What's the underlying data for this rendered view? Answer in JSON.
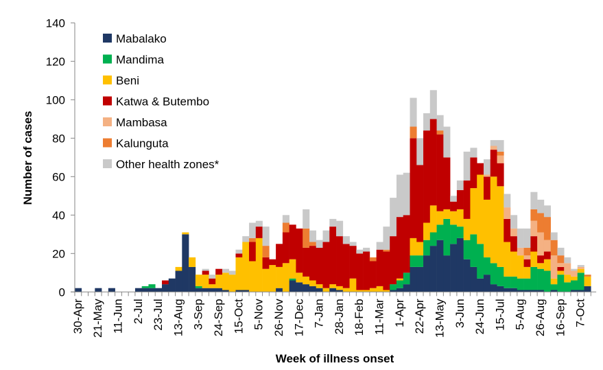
{
  "chart_data": {
    "type": "bar",
    "stacked": true,
    "title": "",
    "xlabel": "Week of illness onset",
    "ylabel": "Number of cases",
    "ylim": [
      0,
      140
    ],
    "yticks": [
      0,
      20,
      40,
      60,
      80,
      100,
      120,
      140
    ],
    "grid": false,
    "legend_position": "top-left",
    "x_tick_labels": [
      "30-Apr",
      "21-May",
      "11-Jun",
      "2-Jul",
      "23-Jul",
      "13-Aug",
      "3-Sep",
      "24-Sep",
      "15-Oct",
      "5-Nov",
      "26-Nov",
      "17-Dec",
      "7-Jan",
      "28-Jan",
      "18-Feb",
      "11-Mar",
      "1-Apr",
      "22-Apr",
      "13-May",
      "3-Jun",
      "24-Jun",
      "15-Jul",
      "5-Aug",
      "26-Aug",
      "16-Sep",
      "7-Oct"
    ],
    "x_label_every_n_weeks": 3,
    "num_weeks": 77,
    "series": [
      {
        "name": "Mabalako",
        "color": "#1F3864",
        "values": [
          2,
          0,
          0,
          2,
          0,
          2,
          0,
          0,
          0,
          2,
          2,
          2,
          2,
          4,
          7,
          11,
          30,
          13,
          2,
          2,
          2,
          2,
          1,
          0,
          1,
          1,
          0,
          0,
          0,
          0,
          2,
          0,
          6,
          5,
          4,
          3,
          2,
          0,
          2,
          1,
          0,
          0,
          0,
          0,
          0,
          0,
          0,
          1,
          2,
          4,
          13,
          13,
          19,
          24,
          27,
          19,
          25,
          28,
          17,
          13,
          7,
          9,
          4,
          3,
          2,
          2,
          1,
          1,
          1,
          1,
          0,
          1,
          0,
          0,
          1,
          1,
          3
        ]
      },
      {
        "name": "Mandima",
        "color": "#00B050",
        "values": [
          0,
          0,
          0,
          0,
          0,
          0,
          0,
          0,
          0,
          0,
          1,
          2,
          0,
          0,
          0,
          0,
          0,
          0,
          1,
          0,
          0,
          0,
          0,
          0,
          0,
          0,
          0,
          0,
          0,
          0,
          0,
          0,
          1,
          0,
          0,
          0,
          0,
          0,
          0,
          0,
          0,
          0,
          0,
          0,
          0,
          0,
          0,
          3,
          4,
          6,
          6,
          6,
          8,
          7,
          8,
          19,
          10,
          6,
          10,
          17,
          18,
          9,
          11,
          10,
          6,
          6,
          6,
          6,
          12,
          11,
          11,
          3,
          9,
          5,
          5,
          9,
          0
        ]
      },
      {
        "name": "Beni",
        "color": "#FFC000",
        "values": [
          0,
          0,
          0,
          0,
          0,
          0,
          0,
          0,
          0,
          0,
          0,
          0,
          0,
          0,
          0,
          2,
          1,
          5,
          6,
          7,
          2,
          7,
          9,
          9,
          17,
          25,
          16,
          28,
          12,
          14,
          11,
          15,
          10,
          5,
          4,
          3,
          2,
          2,
          2,
          2,
          2,
          7,
          1,
          1,
          2,
          3,
          1,
          0,
          1,
          0,
          9,
          7,
          9,
          14,
          7,
          5,
          7,
          9,
          11,
          24,
          36,
          30,
          45,
          42,
          18,
          13,
          12,
          6,
          8,
          3,
          6,
          3,
          2,
          4,
          2,
          2,
          5
        ]
      },
      {
        "name": "Katwa & Butembo",
        "color": "#C00000",
        "values": [
          0,
          0,
          0,
          0,
          0,
          0,
          0,
          0,
          0,
          0,
          0,
          0,
          0,
          2,
          0,
          0,
          0,
          0,
          0,
          2,
          3,
          3,
          0,
          0,
          2,
          0,
          10,
          6,
          6,
          3,
          12,
          16,
          18,
          23,
          15,
          18,
          19,
          24,
          30,
          26,
          23,
          17,
          19,
          20,
          14,
          19,
          20,
          25,
          32,
          30,
          52,
          40,
          48,
          45,
          40,
          27,
          5,
          10,
          20,
          16,
          6,
          12,
          14,
          12,
          12,
          8,
          0,
          4,
          8,
          4,
          4,
          0,
          2,
          0,
          0,
          0,
          0
        ]
      },
      {
        "name": "Mambasa",
        "color": "#F4B183",
        "values": [
          0,
          0,
          0,
          0,
          0,
          0,
          0,
          0,
          0,
          0,
          0,
          0,
          0,
          0,
          0,
          0,
          0,
          0,
          0,
          0,
          0,
          0,
          0,
          0,
          0,
          0,
          0,
          0,
          0,
          0,
          0,
          0,
          0,
          0,
          0,
          0,
          0,
          0,
          0,
          0,
          0,
          0,
          0,
          0,
          0,
          0,
          0,
          0,
          0,
          0,
          0,
          0,
          0,
          0,
          0,
          0,
          0,
          0,
          0,
          0,
          0,
          1,
          2,
          4,
          6,
          4,
          4,
          2,
          8,
          12,
          6,
          12,
          2,
          6,
          3,
          1,
          0
        ]
      },
      {
        "name": "Kalunguta",
        "color": "#ED7D31",
        "values": [
          0,
          0,
          0,
          0,
          0,
          0,
          0,
          0,
          0,
          0,
          0,
          0,
          0,
          0,
          0,
          0,
          0,
          0,
          0,
          0,
          0,
          0,
          0,
          0,
          0,
          0,
          2,
          0,
          6,
          0,
          0,
          5,
          0,
          0,
          10,
          2,
          0,
          0,
          0,
          0,
          0,
          0,
          0,
          0,
          2,
          0,
          1,
          0,
          0,
          0,
          6,
          0,
          0,
          0,
          2,
          0,
          0,
          0,
          0,
          0,
          0,
          0,
          0,
          2,
          0,
          0,
          0,
          4,
          6,
          10,
          12,
          8,
          4,
          0,
          0,
          0,
          1
        ]
      },
      {
        "name": "Other health zones*",
        "color": "#C9C9C9",
        "values": [
          0,
          0,
          0,
          0,
          0,
          0,
          0,
          0,
          0,
          0,
          0,
          0,
          0,
          0,
          0,
          0,
          0,
          0,
          0,
          1,
          2,
          0,
          2,
          2,
          2,
          3,
          8,
          3,
          10,
          0,
          0,
          4,
          0,
          0,
          10,
          6,
          4,
          6,
          4,
          8,
          4,
          2,
          2,
          2,
          0,
          4,
          12,
          20,
          22,
          22,
          15,
          14,
          9,
          15,
          8,
          16,
          3,
          5,
          15,
          5,
          0,
          8,
          3,
          6,
          7,
          7,
          10,
          10,
          9,
          7,
          6,
          4,
          4,
          3,
          1,
          1,
          0
        ]
      }
    ]
  }
}
